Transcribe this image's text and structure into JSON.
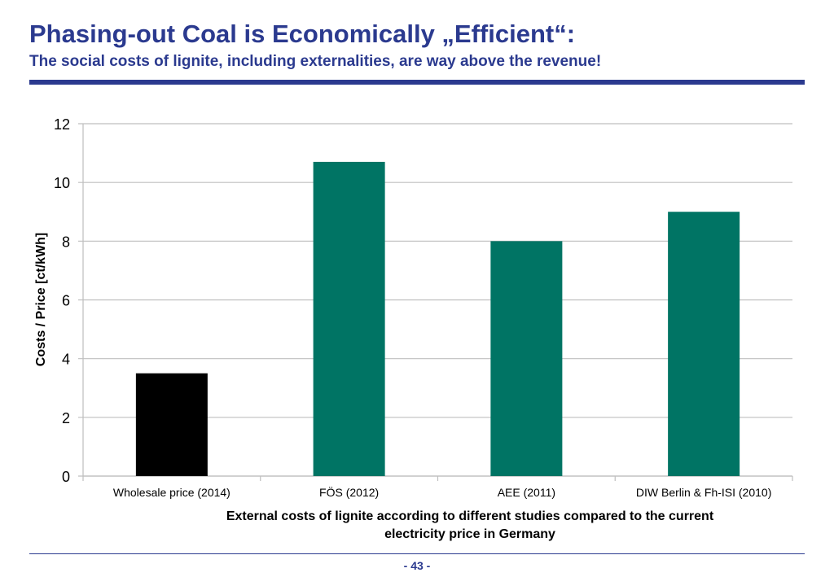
{
  "slide": {
    "title": "Phasing-out Coal is Economically „Efficient“:",
    "subtitle": "The social costs of lignite, including externalities, are way above the revenue!",
    "page_number": "- 43 -"
  },
  "colors": {
    "title": "#2b3a8f",
    "bar_primary": "#000000",
    "bar_studies": "#007464",
    "gridline": "#bfbfbf"
  },
  "chart_data": {
    "type": "bar",
    "categories": [
      "Wholesale price (2014)",
      "FÖS (2012)",
      "AEE (2011)",
      "DIW Berlin & Fh-ISI (2010)"
    ],
    "values": [
      3.5,
      10.7,
      8.0,
      9.0
    ],
    "bar_colors": [
      "#000000",
      "#007464",
      "#007464",
      "#007464"
    ],
    "title": "",
    "xlabel": "External costs of lignite according to different studies compared to the current electricity price in Germany",
    "xlabel_lines": [
      "External costs of lignite according to different studies compared to the current",
      "electricity price in Germany"
    ],
    "ylabel": "Costs / Price [ct/kWh]",
    "ylim": [
      0,
      12
    ],
    "yticks": [
      0,
      2,
      4,
      6,
      8,
      10,
      12
    ],
    "grid": true,
    "legend": "none"
  }
}
